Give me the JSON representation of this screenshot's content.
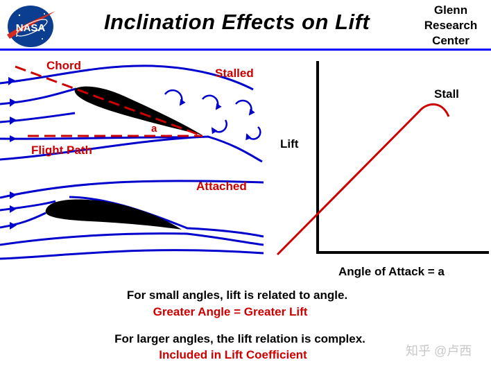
{
  "header": {
    "title": "Inclination  Effects  on  Lift",
    "logo_text": "NASA",
    "center_lines": [
      "Glenn",
      "Research",
      "Center"
    ]
  },
  "diagram": {
    "chord_label": "Chord",
    "stalled_label": "Stalled",
    "angle_label": "a",
    "flight_path_label": "Flight Path",
    "attached_label": "Attached"
  },
  "graph": {
    "y_label": "Lift",
    "x_label": "Angle  of  Attack = a",
    "stall_label": "Stall"
  },
  "captions": {
    "line1": "For  small  angles,  lift  is  related  to  angle.",
    "line2": "Greater  Angle  =  Greater  Lift",
    "line3": "For larger  angles,  the  lift  relation  is  complex.",
    "line4": "Included  in  Lift  Coefficient"
  },
  "watermark": "知乎 @卢西",
  "colors": {
    "streamline": "#0000cc",
    "accent_red": "#cc0000",
    "rule_blue": "#0000ff",
    "airfoil": "#000000"
  }
}
